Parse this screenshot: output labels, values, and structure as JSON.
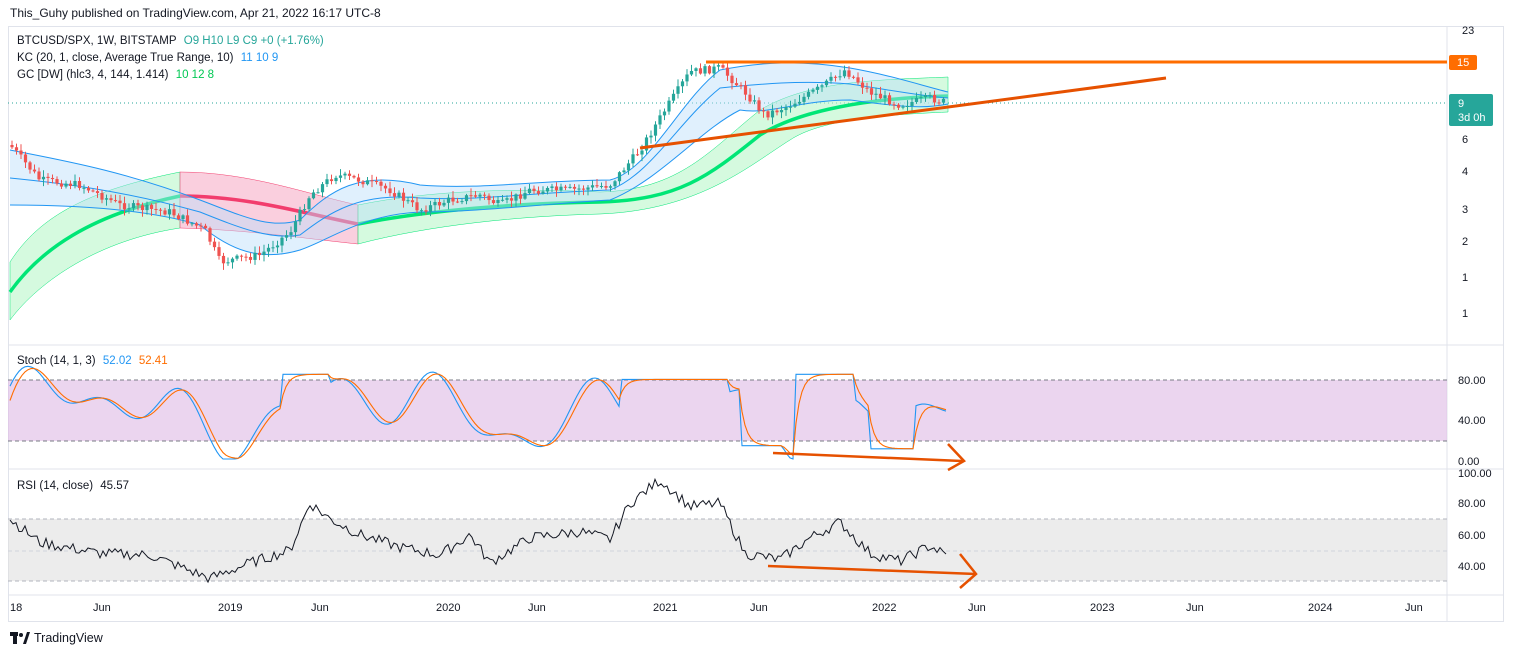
{
  "header": {
    "publisher": "This_Guhy published on TradingView.com, Apr 21, 2022 16:17 UTC-8"
  },
  "main_legend": {
    "symbol": "BTCUSD/SPX, 1W, BITSTAMP",
    "ohlc": "O9  H10  L9  C9  +0 (+1.76%)",
    "kc_label": "KC (20, 1, close, Average True Range, 10)",
    "kc_values": "11  10  9",
    "gc_label": "GC [DW] (hlc3, 4, 144, 1.414)",
    "gc_values": "10  12  8"
  },
  "price_axis": {
    "ticks": [
      "23",
      "6",
      "4",
      "3",
      "2",
      "1",
      "1"
    ],
    "badge_top": "15",
    "badge_price": "9",
    "badge_timer": "3d 0h"
  },
  "stoch_legend": {
    "label": "Stoch (14, 1, 3)",
    "k": "52.02",
    "d": "52.41"
  },
  "stoch_axis": {
    "ticks": [
      "80.00",
      "40.00",
      "0.00"
    ]
  },
  "rsi_legend": {
    "label": "RSI (14, close)",
    "value": "45.57"
  },
  "rsi_axis": {
    "ticks": [
      "100.00",
      "80.00",
      "60.00",
      "40.00"
    ]
  },
  "time_axis": {
    "labels": [
      "18",
      "Jun",
      "2019",
      "Jun",
      "2020",
      "Jun",
      "2021",
      "Jun",
      "2022",
      "Jun",
      "2023",
      "Jun",
      "2024",
      "Jun"
    ]
  },
  "footer": {
    "brand": "TradingView"
  },
  "colors": {
    "up": "#26a69a",
    "down": "#ef5350",
    "kc": "#2196f3",
    "gc_green": "#00e676",
    "gc_red": "#f23d6d",
    "trend": "#e65100",
    "stoch_k": "#2196f3",
    "stoch_d": "#ff6d00",
    "stoch_band": "#e1bee7"
  }
}
